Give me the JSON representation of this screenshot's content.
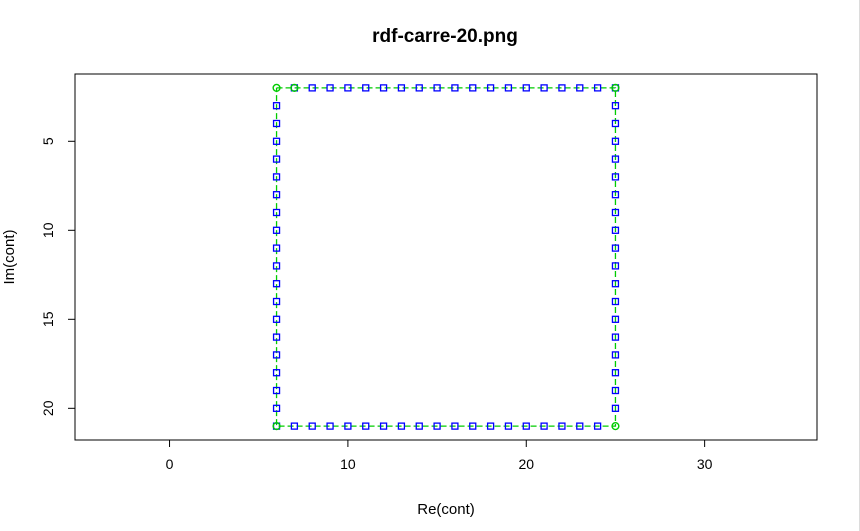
{
  "chart_data": {
    "type": "scatter",
    "title": "rdf-carre-20.png",
    "xlabel": "Re(cont)",
    "ylabel": "Im(cont)",
    "xlim": [
      -5.3,
      36.3
    ],
    "ylim": [
      21.78,
      1.22
    ],
    "y_reversed": true,
    "x_ticks": [
      0,
      10,
      20,
      30
    ],
    "y_ticks": [
      5,
      10,
      15,
      20
    ],
    "grid": false,
    "series": [
      {
        "marker": "square",
        "color": "#0000ff",
        "x": [
          6,
          6,
          6,
          6,
          6,
          6,
          6,
          6,
          6,
          6,
          6,
          6,
          6,
          6,
          6,
          6,
          6,
          6,
          6,
          7,
          8,
          9,
          10,
          11,
          12,
          13,
          14,
          15,
          16,
          17,
          18,
          19,
          20,
          21,
          22,
          23,
          24,
          25,
          25,
          25,
          25,
          25,
          25,
          25,
          25,
          25,
          25,
          25,
          25,
          25,
          25,
          25,
          25,
          25,
          25,
          25,
          24,
          23,
          22,
          21,
          20,
          19,
          18,
          17,
          16,
          15,
          14,
          13,
          12,
          11,
          10,
          9,
          8,
          7
        ],
        "y": [
          3,
          4,
          5,
          6,
          7,
          8,
          9,
          10,
          11,
          12,
          13,
          14,
          15,
          16,
          17,
          18,
          19,
          20,
          21,
          21,
          21,
          21,
          21,
          21,
          21,
          21,
          21,
          21,
          21,
          21,
          21,
          21,
          21,
          21,
          21,
          21,
          21,
          20,
          19,
          18,
          17,
          16,
          15,
          14,
          13,
          12,
          11,
          10,
          9,
          8,
          7,
          6,
          5,
          4,
          3,
          2,
          2,
          2,
          2,
          2,
          2,
          2,
          2,
          2,
          2,
          2,
          2,
          2,
          2,
          2,
          2,
          2,
          2,
          2
        ]
      },
      {
        "marker": "circle",
        "color": "#00cc00",
        "line": "dashed",
        "x": [
          6,
          7,
          25,
          6,
          25
        ],
        "y": [
          2,
          2,
          2,
          21,
          21
        ]
      }
    ],
    "outline": {
      "color": "#00cc00",
      "x": [
        6,
        25,
        25,
        6,
        6
      ],
      "y": [
        2,
        2,
        21,
        21,
        2
      ]
    }
  }
}
